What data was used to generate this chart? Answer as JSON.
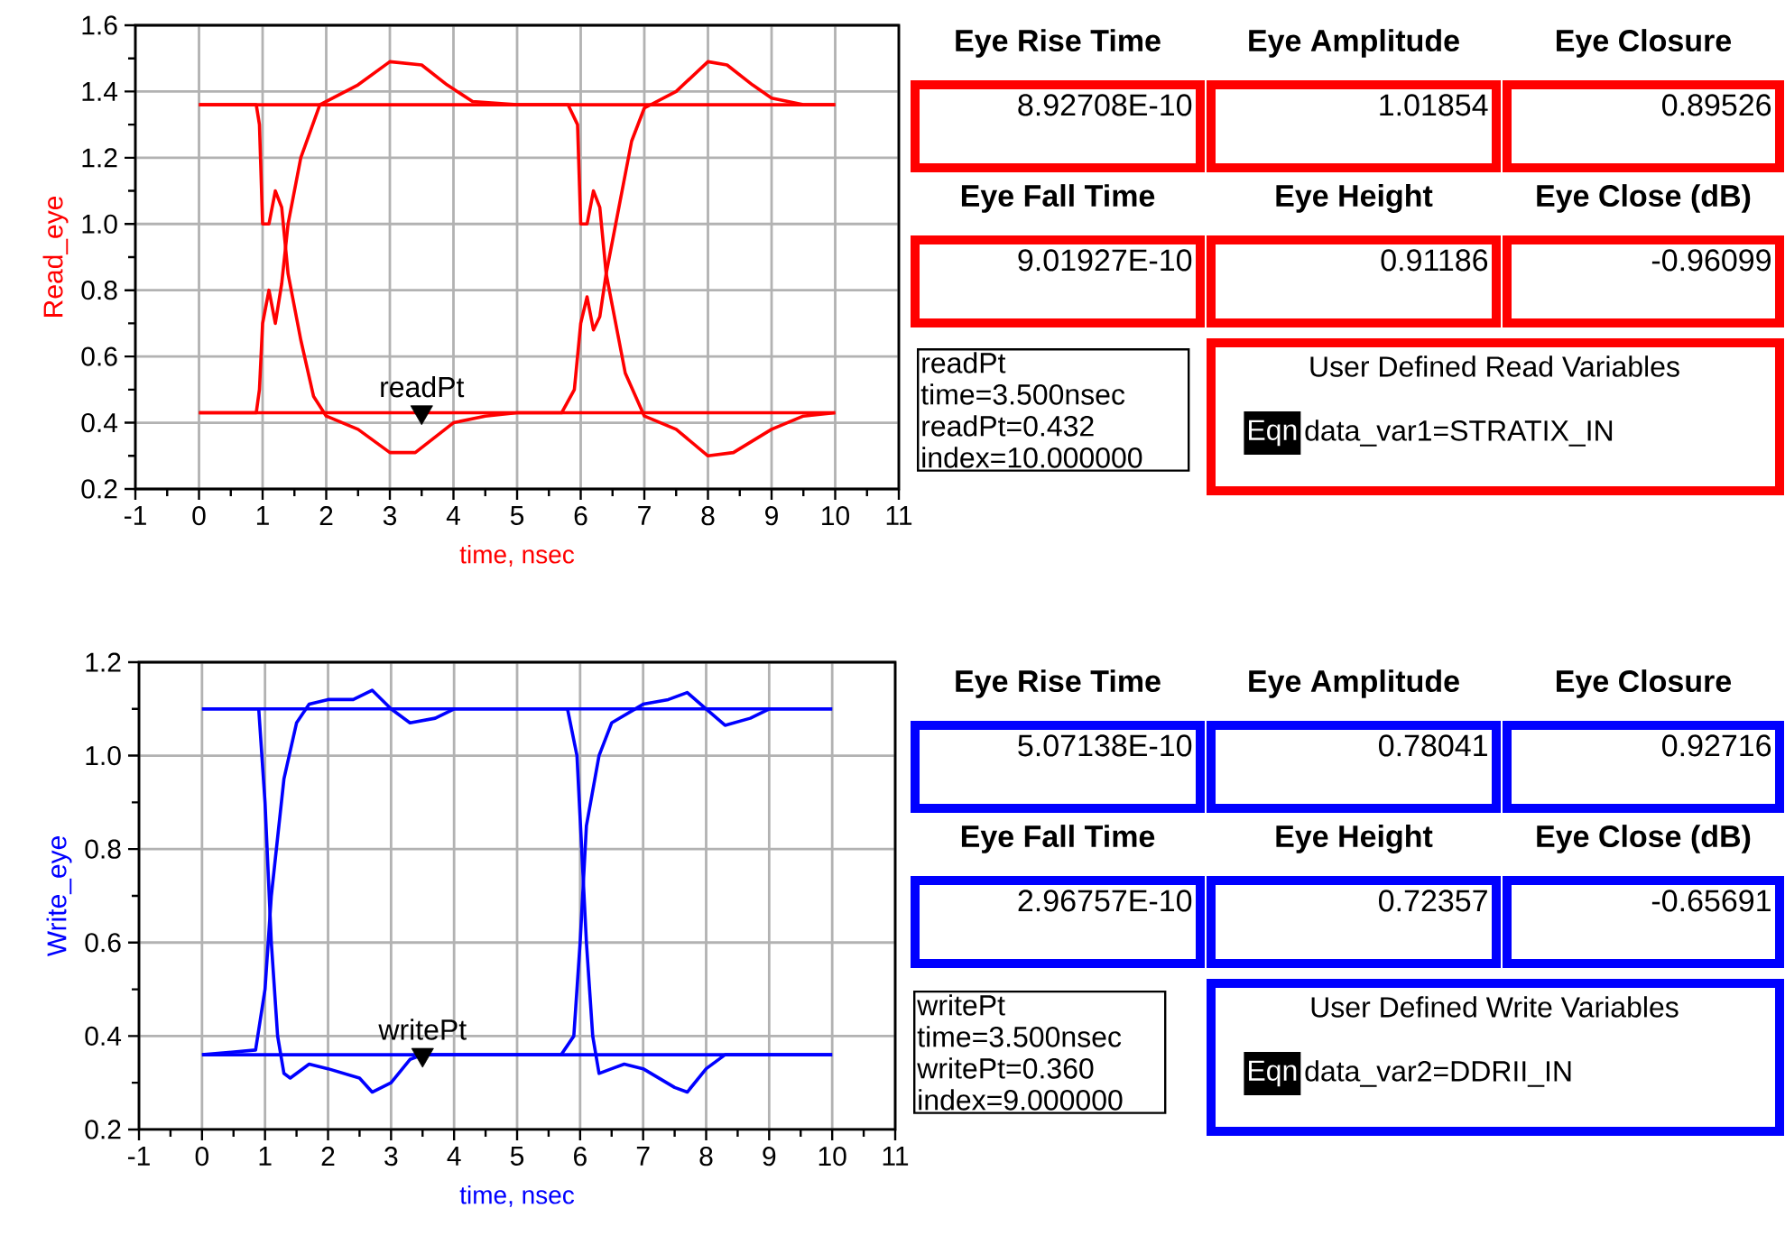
{
  "chart_data": [
    {
      "type": "line",
      "xlabel": "time, nsec",
      "ylabel": "Read_eye",
      "xlim": [
        -1,
        11
      ],
      "ylim": [
        0.2,
        1.6
      ],
      "xticks": [
        -1,
        0,
        1,
        2,
        3,
        4,
        5,
        6,
        7,
        8,
        9,
        10,
        11
      ],
      "yticks": [
        0.2,
        0.4,
        0.6,
        0.8,
        {
          "value": 1,
          "label": "1.0"
        },
        1.2,
        1.4,
        1.6
      ],
      "grid": true,
      "series": [
        {
          "color": "#ff0000",
          "x": [
            0,
            10
          ],
          "values": [
            1.36,
            1.36
          ]
        },
        {
          "color": "#ff0000",
          "x": [
            0,
            10
          ],
          "values": [
            0.43,
            0.43
          ]
        },
        {
          "color": "#ff0000",
          "x": [
            0,
            0.9,
            0.95,
            1.0,
            1.1,
            1.2,
            1.3,
            1.4,
            1.6,
            1.8,
            2.0,
            2.5,
            3.0,
            3.4,
            4.0,
            4.5,
            5.0,
            5.7,
            5.9,
            6.0,
            6.1,
            6.2,
            6.3,
            6.4,
            6.6,
            6.8,
            7.0,
            7.5,
            8.0,
            8.3,
            8.7,
            9.0,
            9.5,
            10
          ],
          "values": [
            1.36,
            1.36,
            1.3,
            1.0,
            1.0,
            1.1,
            1.05,
            0.85,
            0.65,
            0.48,
            0.42,
            0.38,
            0.31,
            0.31,
            0.4,
            0.42,
            0.43,
            0.43,
            0.5,
            0.7,
            0.78,
            0.68,
            0.72,
            0.85,
            1.05,
            1.25,
            1.35,
            1.4,
            1.49,
            1.48,
            1.42,
            1.38,
            1.36,
            1.36
          ]
        },
        {
          "type": "scatter",
          "name": "readPt",
          "marker": "triangle",
          "color": "#000000",
          "x": [
            3.5
          ],
          "values": [
            0.432
          ]
        },
        {
          "color": "#ff0000",
          "x": [
            0,
            0.9,
            0.95,
            1.0,
            1.1,
            1.2,
            1.3,
            1.4,
            1.6,
            1.9,
            2.5,
            3.0,
            3.5,
            3.9,
            4.3,
            5.0,
            5.8,
            5.95,
            6.0,
            6.1,
            6.2,
            6.3,
            6.4,
            6.7,
            7.0,
            7.5,
            8.0,
            8.4,
            9.0,
            9.5,
            10
          ],
          "values": [
            0.43,
            0.43,
            0.5,
            0.7,
            0.8,
            0.7,
            0.82,
            1.0,
            1.2,
            1.36,
            1.42,
            1.49,
            1.48,
            1.42,
            1.37,
            1.36,
            1.36,
            1.3,
            1.0,
            1.0,
            1.1,
            1.05,
            0.85,
            0.55,
            0.42,
            0.38,
            0.3,
            0.31,
            0.38,
            0.42,
            0.43
          ]
        }
      ],
      "annotations": [
        "readPt",
        "time=3.500nsec",
        "readPt=0.432",
        "index=10.000000"
      ]
    },
    {
      "type": "other",
      "color": "#ff0000",
      "categories": [
        "Eye Rise Time",
        "Eye Amplitude",
        "Eye Closure",
        "Eye Fall Time",
        "Eye Height",
        "Eye Close (dB)"
      ],
      "value_labels": [
        "8.92708E-10",
        "1.01854",
        "0.89526",
        "9.01927E-10",
        "0.91186",
        "-0.96099"
      ],
      "title": "User Defined Read Variables",
      "annotations": [
        "Eqn",
        "data_var1=STRATIX_IN"
      ]
    },
    {
      "type": "line",
      "xlabel": "time, nsec",
      "ylabel": "Write_eye",
      "xlim": [
        -1,
        11
      ],
      "ylim": [
        0.2,
        1.2
      ],
      "xticks": [
        -1,
        0,
        1,
        2,
        3,
        4,
        5,
        6,
        7,
        8,
        9,
        10,
        11
      ],
      "yticks": [
        0.2,
        0.4,
        0.6,
        0.8,
        {
          "value": 1,
          "label": "1.0"
        },
        1.2
      ],
      "grid": true,
      "series": [
        {
          "color": "#0000ff",
          "x": [
            0,
            10
          ],
          "values": [
            1.1,
            1.1
          ]
        },
        {
          "color": "#0000ff",
          "x": [
            0,
            10
          ],
          "values": [
            0.36,
            0.36
          ]
        },
        {
          "color": "#0000ff",
          "x": [
            0,
            0.9,
            1.0,
            1.1,
            1.2,
            1.3,
            1.4,
            1.7,
            2.0,
            2.5,
            2.7,
            3.0,
            3.3,
            3.5,
            5.0,
            5.7,
            5.9,
            6.0,
            6.1,
            6.3,
            6.5,
            7.0,
            7.4,
            7.7,
            8.0,
            8.3,
            8.7,
            9.0,
            10
          ],
          "values": [
            1.1,
            1.1,
            0.9,
            0.6,
            0.4,
            0.32,
            0.31,
            0.34,
            0.33,
            0.31,
            0.28,
            0.3,
            0.35,
            0.36,
            0.36,
            0.36,
            0.4,
            0.6,
            0.85,
            1.0,
            1.07,
            1.11,
            1.12,
            1.135,
            1.1,
            1.065,
            1.08,
            1.1,
            1.1
          ]
        },
        {
          "type": "scatter",
          "name": "writePt",
          "marker": "triangle",
          "color": "#000000",
          "x": [
            3.5
          ],
          "values": [
            0.36
          ]
        },
        {
          "color": "#0000ff",
          "x": [
            0,
            0.85,
            1.0,
            1.1,
            1.3,
            1.5,
            1.7,
            2.0,
            2.4,
            2.7,
            3.0,
            3.3,
            3.7,
            4.0,
            5.0,
            5.8,
            5.95,
            6.1,
            6.2,
            6.3,
            6.5,
            6.7,
            7.0,
            7.5,
            7.7,
            8.0,
            8.3,
            10
          ],
          "values": [
            0.36,
            0.37,
            0.5,
            0.7,
            0.95,
            1.07,
            1.11,
            1.12,
            1.12,
            1.14,
            1.1,
            1.07,
            1.08,
            1.1,
            1.1,
            1.1,
            1.0,
            0.6,
            0.4,
            0.32,
            0.33,
            0.34,
            0.33,
            0.29,
            0.28,
            0.33,
            0.36,
            0.36
          ]
        }
      ],
      "annotations": [
        "writePt",
        "time=3.500nsec",
        "writePt=0.360",
        "index=9.000000"
      ]
    },
    {
      "type": "other",
      "color": "#0000ff",
      "categories": [
        "Eye Rise Time",
        "Eye Amplitude",
        "Eye Closure",
        "Eye Fall Time",
        "Eye Height",
        "Eye Close (dB)"
      ],
      "value_labels": [
        "5.07138E-10",
        "0.78041",
        "0.92716",
        "2.96757E-10",
        "0.72357",
        "-0.65691"
      ],
      "title": "User Defined Write Variables",
      "annotations": [
        "Eqn",
        "data_var2=DDRII_IN"
      ]
    }
  ]
}
